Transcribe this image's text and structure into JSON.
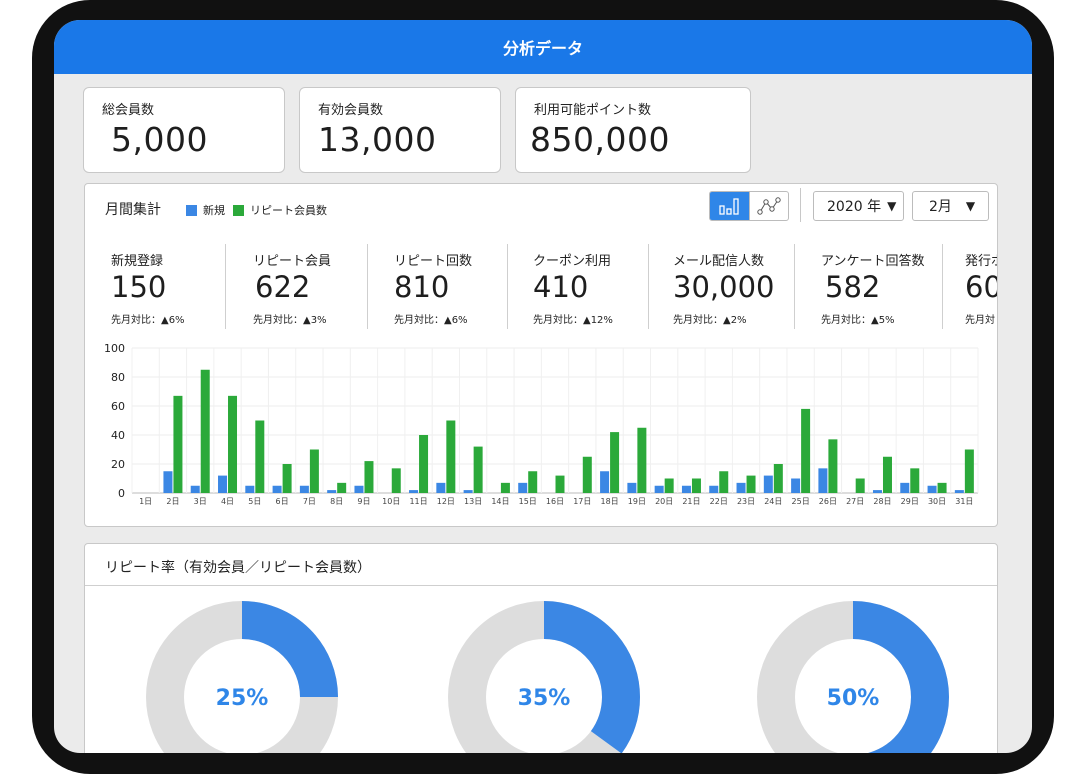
{
  "app": {
    "title": "分析データ"
  },
  "summary": [
    {
      "label": "総会員数",
      "value": "5,000"
    },
    {
      "label": "有効会員数",
      "value": "13,000"
    },
    {
      "label": "利用可能ポイント数",
      "value": "850,000"
    }
  ],
  "monthly": {
    "title": "月間集計",
    "legend_new": "新規",
    "legend_repeat": "リピート会員数",
    "year_select": "2020 年",
    "month_select": "2月",
    "metrics": [
      {
        "label": "新規登録",
        "value": "150",
        "delta": "先月対比：▲6%"
      },
      {
        "label": "リピート会員",
        "value": "622",
        "delta": "先月対比：▲3%"
      },
      {
        "label": "リピート回数",
        "value": "810",
        "delta": "先月対比：▲6%"
      },
      {
        "label": "クーポン利用",
        "value": "410",
        "delta": "先月対比：▲12%"
      },
      {
        "label": "メール配信人数",
        "value": "30,000",
        "delta": "先月対比：▲2%"
      },
      {
        "label": "アンケート回答数",
        "value": "582",
        "delta": "先月対比：▲5%"
      },
      {
        "label": "発行ポ",
        "value": "60",
        "delta": "先月対"
      }
    ]
  },
  "chart_data": {
    "type": "bar",
    "categories": [
      "1日",
      "2日",
      "3日",
      "4日",
      "5日",
      "6日",
      "7日",
      "8日",
      "9日",
      "10日",
      "11日",
      "12日",
      "13日",
      "14日",
      "15日",
      "16日",
      "17日",
      "18日",
      "19日",
      "20日",
      "21日",
      "22日",
      "23日",
      "24日",
      "25日",
      "26日",
      "27日",
      "28日",
      "29日",
      "30日",
      "31日"
    ],
    "series": [
      {
        "name": "新規",
        "color": "#3b87e4",
        "values": [
          0,
          15,
          5,
          12,
          5,
          5,
          5,
          2,
          5,
          0,
          2,
          7,
          2,
          0,
          7,
          0,
          0,
          15,
          7,
          5,
          5,
          5,
          7,
          12,
          10,
          17,
          0,
          2,
          7,
          5,
          2
        ]
      },
      {
        "name": "リピート会員数",
        "color": "#2ba93a",
        "values": [
          0,
          67,
          85,
          67,
          50,
          20,
          30,
          7,
          22,
          17,
          40,
          50,
          32,
          7,
          15,
          12,
          25,
          42,
          45,
          10,
          10,
          15,
          12,
          20,
          58,
          37,
          10,
          25,
          17,
          7,
          30
        ]
      }
    ],
    "yticks": [
      0,
      20,
      40,
      60,
      80,
      100
    ],
    "ylim": [
      0,
      100
    ],
    "grid": true
  },
  "ratio": {
    "title": "リピート率（有効会員／リピート会員数）",
    "donuts": [
      {
        "label": "25%",
        "value": 25
      },
      {
        "label": "35%",
        "value": 35
      },
      {
        "label": "50%",
        "value": 50
      }
    ],
    "colors": {
      "fill": "#3b87e4",
      "track": "#dddddd"
    }
  },
  "icons": {
    "bar_chart": "bar-chart-icon",
    "line_chart": "line-chart-icon",
    "dropdown": "triangle-down-icon"
  }
}
